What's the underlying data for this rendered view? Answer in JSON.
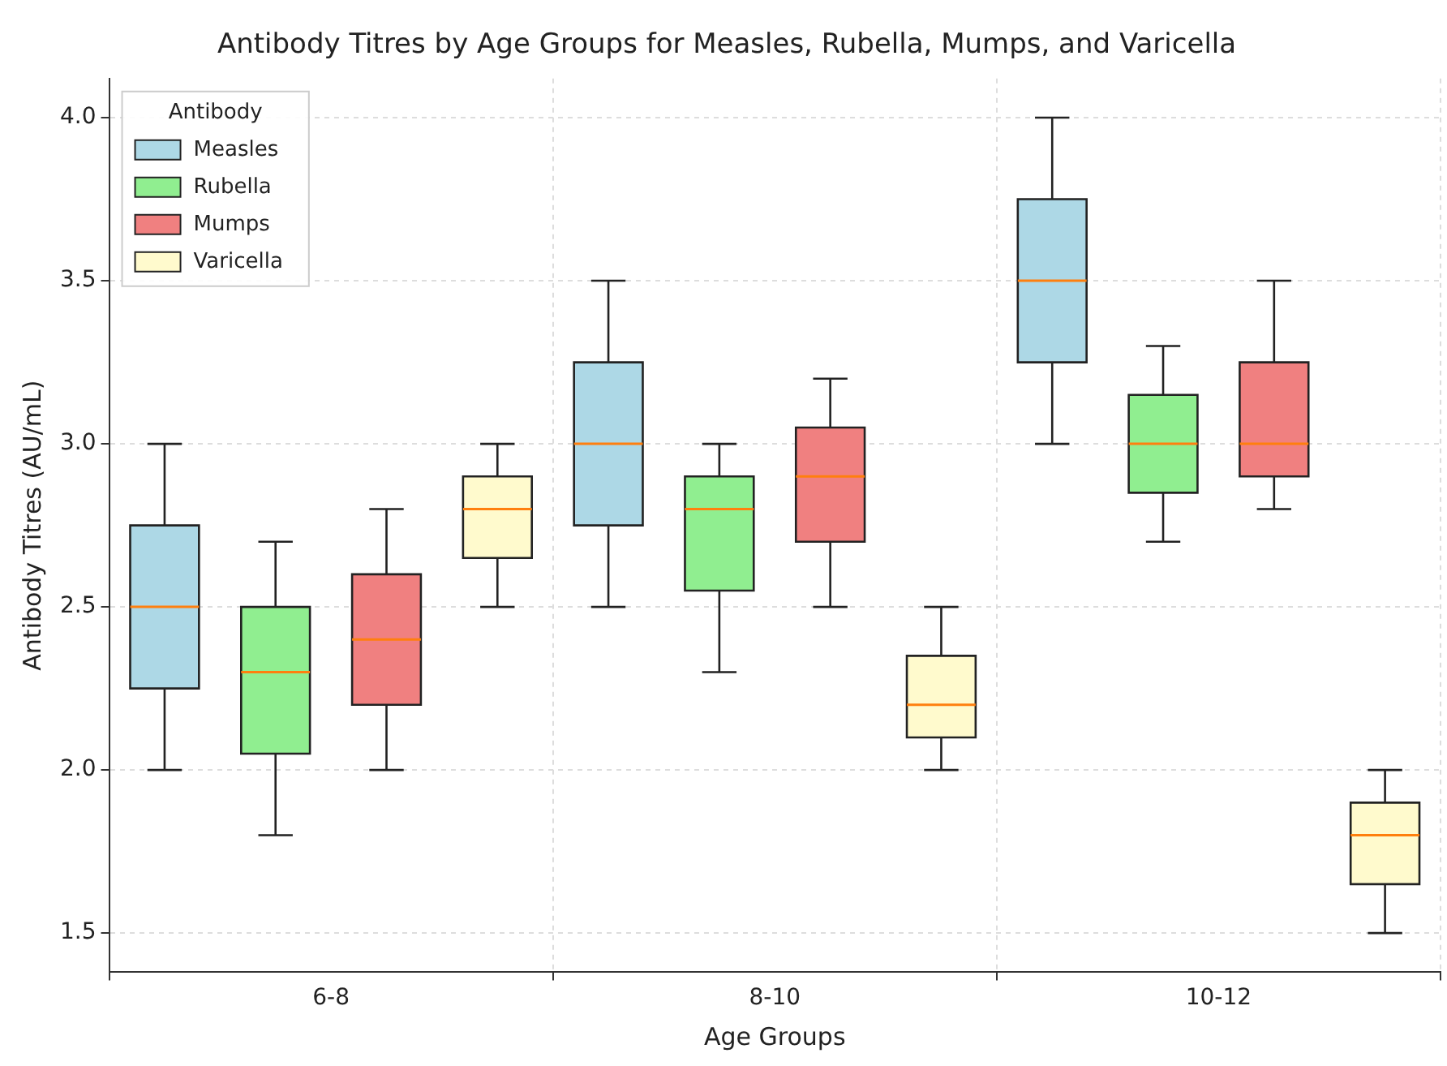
{
  "chart_data": {
    "type": "box",
    "title": "Antibody Titres by Age Groups for Measles, Rubella, Mumps, and Varicella",
    "xlabel": "Age Groups",
    "ylabel": "Antibody Titres (AU/mL)",
    "legend_title": "Antibody",
    "categories": [
      "6-8",
      "8-10",
      "10-12"
    ],
    "ylim": [
      1.38,
      4.12
    ],
    "yticks": [
      1.5,
      {
        "value": 2,
        "label": "2.0"
      },
      2.5,
      {
        "value": 3,
        "label": "3.0"
      },
      3.5,
      {
        "value": 4,
        "label": "4.0"
      }
    ],
    "grid": true,
    "legend": "top left",
    "series": [
      {
        "name": "Measles",
        "color": "#add8e6",
        "boxes": [
          {
            "low": 2.0,
            "q1": 2.25,
            "median": 2.5,
            "q3": 2.75,
            "high": 3.0
          },
          {
            "low": 2.5,
            "q1": 2.75,
            "median": 3.0,
            "q3": 3.25,
            "high": 3.5
          },
          {
            "low": 3.0,
            "q1": 3.25,
            "median": 3.5,
            "q3": 3.75,
            "high": 4.0
          }
        ]
      },
      {
        "name": "Rubella",
        "color": "#90ee90",
        "boxes": [
          {
            "low": 1.8,
            "q1": 2.05,
            "median": 2.3,
            "q3": 2.5,
            "high": 2.7
          },
          {
            "low": 2.3,
            "q1": 2.55,
            "median": 2.8,
            "q3": 2.9,
            "high": 3.0
          },
          {
            "low": 2.7,
            "q1": 2.85,
            "median": 3.0,
            "q3": 3.15,
            "high": 3.3
          }
        ]
      },
      {
        "name": "Mumps",
        "color": "#f08080",
        "boxes": [
          {
            "low": 2.0,
            "q1": 2.2,
            "median": 2.4,
            "q3": 2.6,
            "high": 2.8
          },
          {
            "low": 2.5,
            "q1": 2.7,
            "median": 2.9,
            "q3": 3.05,
            "high": 3.2
          },
          {
            "low": 2.8,
            "q1": 2.9,
            "median": 3.0,
            "q3": 3.25,
            "high": 3.5
          }
        ]
      },
      {
        "name": "Varicella",
        "color": "#fffacd",
        "boxes": [
          {
            "low": 2.5,
            "q1": 2.65,
            "median": 2.8,
            "q3": 2.9,
            "high": 3.0
          },
          {
            "low": 2.0,
            "q1": 2.1,
            "median": 2.2,
            "q3": 2.35,
            "high": 2.5
          },
          {
            "low": 1.5,
            "q1": 1.65,
            "median": 1.8,
            "q3": 1.9,
            "high": 2.0
          }
        ]
      }
    ]
  }
}
